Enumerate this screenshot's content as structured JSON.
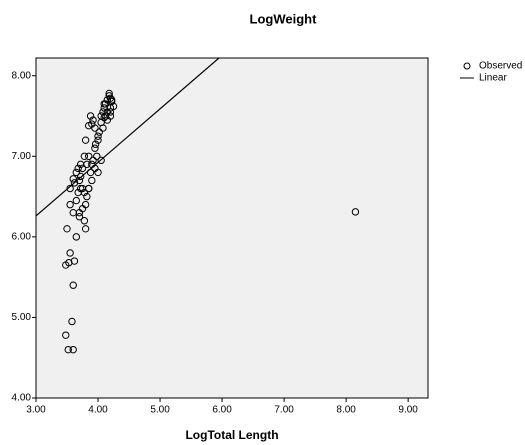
{
  "chart_data": {
    "type": "scatter",
    "title": "LogWeight",
    "x_label": "LogTotal Length",
    "xlim": [
      3,
      9.32
    ],
    "ylim": [
      4,
      8.22
    ],
    "xticks": [
      {
        "value": 3,
        "label": "3.00"
      },
      {
        "value": 4,
        "label": "4.00"
      },
      {
        "value": 5,
        "label": "5.00"
      },
      {
        "value": 6,
        "label": "6.00"
      },
      {
        "value": 7,
        "label": "7.00"
      },
      {
        "value": 8,
        "label": "8.00"
      },
      {
        "value": 9,
        "label": "9.00"
      }
    ],
    "yticks": [
      {
        "value": 4,
        "label": "4.00"
      },
      {
        "value": 5,
        "label": "5.00"
      },
      {
        "value": 6,
        "label": "6.00"
      },
      {
        "value": 7,
        "label": "7.00"
      },
      {
        "value": 8,
        "label": "8.00"
      }
    ],
    "grid": false,
    "legend": "right",
    "series": [
      {
        "name": "Observed",
        "type": "scatter",
        "color": "#000000",
        "x": [
          3.48,
          3.52,
          3.6,
          3.58,
          3.6,
          3.48,
          3.55,
          3.53,
          3.62,
          3.5,
          3.65,
          3.55,
          3.6,
          3.55,
          3.62,
          3.65,
          3.6,
          3.68,
          3.7,
          3.72,
          3.75,
          3.65,
          3.7,
          3.78,
          3.8,
          3.75,
          3.72,
          3.82,
          3.85,
          3.78,
          3.8,
          3.88,
          3.9,
          3.7,
          3.75,
          3.85,
          3.92,
          3.95,
          3.98,
          4.0,
          3.9,
          3.95,
          4.0,
          4.02,
          3.85,
          3.88,
          3.92,
          3.96,
          4.05,
          4.08,
          4.1,
          4.12,
          4.15,
          4.18,
          4.2,
          4.22,
          4.25,
          4.1,
          4.15,
          4.2,
          4.05,
          4.08,
          4.12,
          4.18,
          4.22,
          4.15,
          4.2,
          4.0,
          4.05,
          3.95,
          3.9,
          3.8,
          3.82,
          3.78,
          3.72,
          3.68,
          3.85,
          4.1,
          4.2,
          8.15
        ],
        "values": [
          4.78,
          4.6,
          4.6,
          4.95,
          5.4,
          5.65,
          5.8,
          5.68,
          5.7,
          6.1,
          6.0,
          6.4,
          6.3,
          6.6,
          6.67,
          6.8,
          6.72,
          6.55,
          6.7,
          6.75,
          6.6,
          6.45,
          6.3,
          6.2,
          6.4,
          6.85,
          6.9,
          6.5,
          6.6,
          6.55,
          6.1,
          6.8,
          6.9,
          6.25,
          6.35,
          7.0,
          6.95,
          7.1,
          7.0,
          7.2,
          7.4,
          7.35,
          7.25,
          7.3,
          7.38,
          7.5,
          7.45,
          7.15,
          7.5,
          7.55,
          7.6,
          7.65,
          7.7,
          7.75,
          7.72,
          7.68,
          7.62,
          7.48,
          7.55,
          7.6,
          7.42,
          7.35,
          7.5,
          7.78,
          7.7,
          7.45,
          7.5,
          6.8,
          6.95,
          6.85,
          6.7,
          7.2,
          6.9,
          7.0,
          6.6,
          6.85,
          6.6,
          7.65,
          7.55,
          6.31
        ]
      },
      {
        "name": "Linear",
        "type": "line",
        "color": "#000000",
        "x": [
          3,
          5.95
        ],
        "values": [
          6.26,
          8.22
        ]
      }
    ]
  }
}
